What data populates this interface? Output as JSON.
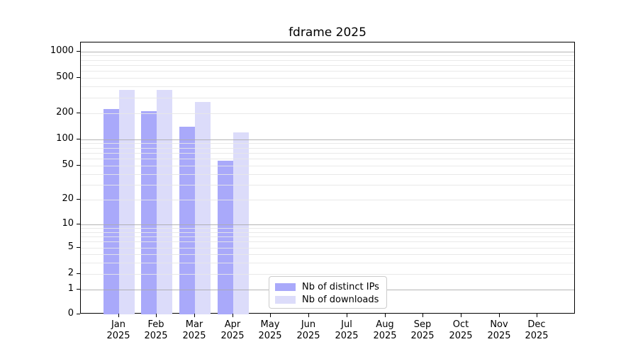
{
  "chart_data": {
    "type": "bar",
    "title": "fdrame 2025",
    "categories": [
      "Jan",
      "Feb",
      "Mar",
      "Apr",
      "May",
      "Jun",
      "Jul",
      "Aug",
      "Sep",
      "Oct",
      "Nov",
      "Dec"
    ],
    "year_label": "2025",
    "series": [
      {
        "name": "Nb of distinct IPs",
        "color": "#a9a9fa",
        "values": [
          221,
          211,
          140,
          57,
          0,
          0,
          0,
          0,
          0,
          0,
          0,
          0
        ]
      },
      {
        "name": "Nb of downloads",
        "color": "#dcdcfa",
        "values": [
          369,
          369,
          269,
          119,
          0,
          0,
          0,
          0,
          0,
          0,
          0,
          0
        ]
      }
    ],
    "yscale": "log1p",
    "ylim": [
      0,
      1000
    ],
    "yticks": [
      0,
      1,
      2,
      5,
      10,
      20,
      50,
      100,
      200,
      500,
      1000
    ],
    "grid": {
      "major_values": [
        1,
        10,
        100,
        1000
      ],
      "minor_values": [
        2,
        3,
        4,
        5,
        6,
        7,
        8,
        9,
        20,
        30,
        40,
        50,
        60,
        70,
        80,
        90,
        200,
        300,
        400,
        500,
        600,
        700,
        800,
        900
      ],
      "major_color": "#aaaaaa",
      "minor_color": "#e7e7e7"
    },
    "legend_position": "lower-center",
    "xlabel": "",
    "ylabel": ""
  }
}
